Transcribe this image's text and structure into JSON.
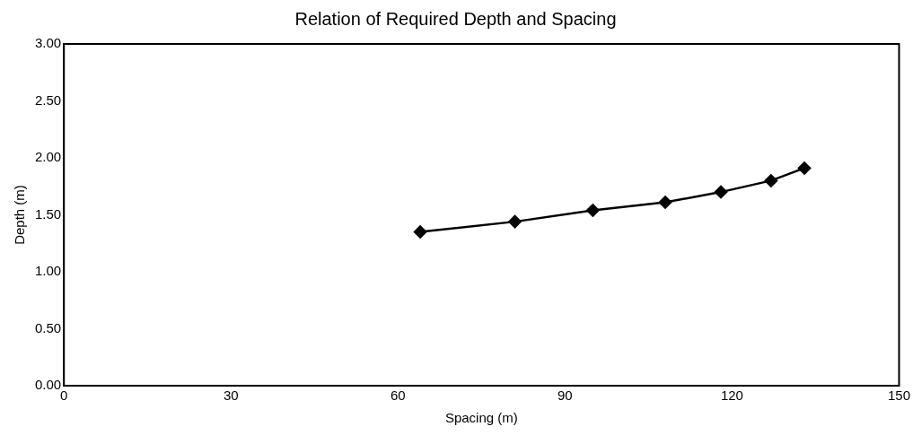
{
  "chart_data": {
    "type": "line",
    "title": "Relation of Required Depth and Spacing",
    "xlabel": "Spacing (m)",
    "ylabel": "Depth (m)",
    "x": [
      64,
      81,
      95,
      108,
      118,
      127,
      133
    ],
    "series": [
      {
        "color": "#000000",
        "values": [
          1.35,
          1.44,
          1.54,
          1.61,
          1.7,
          1.8,
          1.91
        ]
      }
    ],
    "xlim": [
      0,
      150
    ],
    "xticks": [
      0,
      30,
      60,
      90,
      120,
      150
    ],
    "ylim": [
      0,
      3
    ],
    "yticks": [
      {
        "value": 0,
        "label": "0.00"
      },
      {
        "value": 0.5,
        "label": "0.50"
      },
      {
        "value": 1,
        "label": "1.00"
      },
      {
        "value": 1.5,
        "label": "1.50"
      },
      {
        "value": 2,
        "label": "2.00"
      },
      {
        "value": 2.5,
        "label": "2.50"
      },
      {
        "value": 3,
        "label": "3.00"
      }
    ],
    "grid": false,
    "legend": false,
    "marker": "diamond",
    "line_style": "solid"
  }
}
